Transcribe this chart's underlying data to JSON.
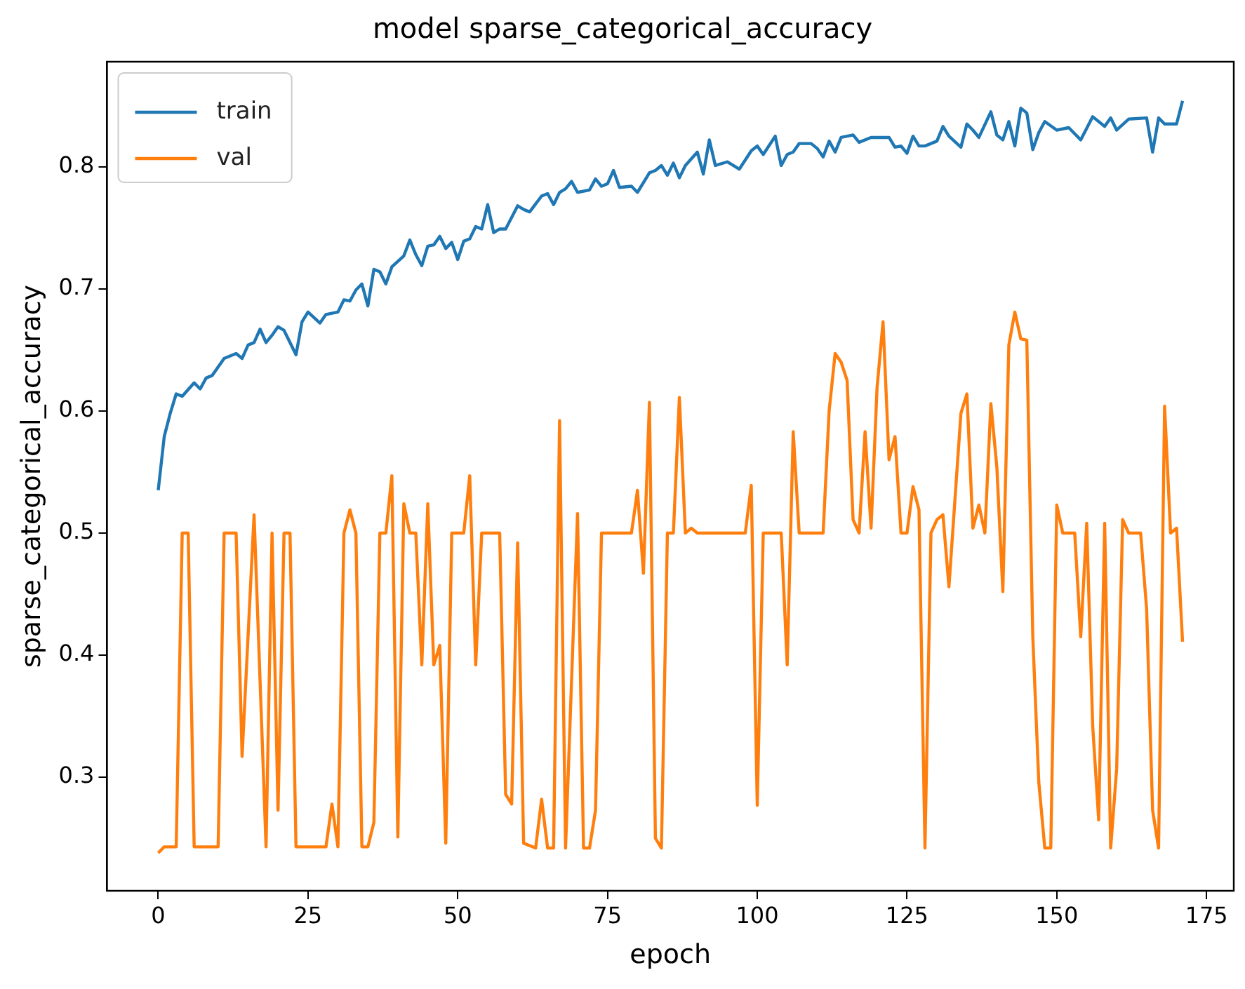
{
  "chart_data": {
    "type": "line",
    "title": "model sparse_categorical_accuracy",
    "xlabel": "epoch",
    "ylabel": "sparse_categorical_accuracy",
    "xlim": [
      -8.55,
      179.55
    ],
    "xticks": [
      0,
      25,
      50,
      75,
      100,
      125,
      150,
      175
    ],
    "ylim": [
      0.207,
      0.886
    ],
    "yticks": [
      0.3,
      0.4,
      0.5,
      0.6,
      0.7,
      0.8
    ],
    "grid": false,
    "legend": "top left",
    "marker": "none",
    "line_style": "solid",
    "series": [
      {
        "name": "train",
        "color": "#1f77b4",
        "x": [
          0,
          1,
          2,
          3,
          4,
          6,
          7,
          8,
          9,
          11,
          12,
          13,
          14,
          15,
          16,
          17,
          18,
          19,
          20,
          21,
          23,
          24,
          25,
          27,
          28,
          30,
          31,
          32,
          33,
          34,
          35,
          36,
          37,
          38,
          39,
          41,
          42,
          43,
          44,
          45,
          46,
          47,
          48,
          49,
          50,
          51,
          52,
          53,
          54,
          55,
          56,
          57,
          58,
          60,
          61,
          62,
          64,
          65,
          66,
          67,
          68,
          69,
          70,
          72,
          73,
          74,
          75,
          76,
          77,
          79,
          80,
          82,
          83,
          84,
          85,
          86,
          87,
          88,
          90,
          91,
          92,
          93,
          95,
          97,
          99,
          100,
          101,
          103,
          104,
          105,
          106,
          107,
          109,
          110,
          111,
          112,
          113,
          114,
          116,
          117,
          119,
          122,
          123,
          124,
          125,
          126,
          127,
          128,
          130,
          131,
          132,
          134,
          135,
          136,
          137,
          139,
          140,
          141,
          142,
          143,
          144,
          145,
          146,
          147,
          148,
          150,
          152,
          154,
          156,
          158,
          159,
          160,
          162,
          165,
          166,
          167,
          168,
          170,
          171
        ],
        "values": [
          0.535,
          0.579,
          0.598,
          0.614,
          0.612,
          0.623,
          0.618,
          0.627,
          0.629,
          0.643,
          0.645,
          0.647,
          0.643,
          0.654,
          0.656,
          0.667,
          0.656,
          0.662,
          0.669,
          0.666,
          0.646,
          0.673,
          0.681,
          0.672,
          0.679,
          0.681,
          0.691,
          0.69,
          0.699,
          0.704,
          0.686,
          0.716,
          0.714,
          0.704,
          0.718,
          0.727,
          0.74,
          0.728,
          0.719,
          0.735,
          0.736,
          0.743,
          0.733,
          0.738,
          0.724,
          0.739,
          0.741,
          0.751,
          0.749,
          0.769,
          0.746,
          0.749,
          0.749,
          0.768,
          0.765,
          0.763,
          0.776,
          0.778,
          0.769,
          0.779,
          0.782,
          0.788,
          0.779,
          0.781,
          0.79,
          0.784,
          0.786,
          0.797,
          0.783,
          0.784,
          0.779,
          0.795,
          0.797,
          0.801,
          0.793,
          0.803,
          0.791,
          0.801,
          0.812,
          0.794,
          0.822,
          0.801,
          0.804,
          0.798,
          0.813,
          0.817,
          0.81,
          0.825,
          0.801,
          0.81,
          0.812,
          0.819,
          0.819,
          0.815,
          0.808,
          0.821,
          0.812,
          0.824,
          0.826,
          0.82,
          0.824,
          0.824,
          0.816,
          0.817,
          0.811,
          0.825,
          0.817,
          0.817,
          0.821,
          0.833,
          0.825,
          0.816,
          0.835,
          0.83,
          0.824,
          0.845,
          0.826,
          0.822,
          0.837,
          0.817,
          0.848,
          0.844,
          0.814,
          0.828,
          0.837,
          0.83,
          0.832,
          0.822,
          0.841,
          0.833,
          0.84,
          0.83,
          0.839,
          0.84,
          0.812,
          0.84,
          0.835,
          0.835,
          0.854
        ]
      },
      {
        "name": "val",
        "color": "#ff7f0e",
        "x": [
          0,
          1,
          3,
          4,
          5,
          6,
          10,
          11,
          13,
          14,
          16,
          18,
          19,
          20,
          21,
          22,
          23,
          28,
          29,
          30,
          31,
          32,
          33,
          34,
          35,
          36,
          37,
          38,
          39,
          40,
          41,
          42,
          43,
          44,
          45,
          46,
          47,
          48,
          49,
          51,
          52,
          53,
          54,
          57,
          58,
          59,
          60,
          61,
          63,
          64,
          65,
          66,
          67,
          68,
          70,
          71,
          72,
          73,
          74,
          79,
          80,
          81,
          82,
          83,
          84,
          85,
          86,
          87,
          88,
          89,
          90,
          98,
          99,
          100,
          101,
          104,
          105,
          106,
          107,
          111,
          112,
          113,
          114,
          115,
          116,
          117,
          118,
          119,
          120,
          121,
          122,
          123,
          124,
          125,
          126,
          127,
          128,
          129,
          130,
          131,
          132,
          133,
          134,
          135,
          136,
          137,
          138,
          139,
          140,
          141,
          142,
          143,
          144,
          145,
          146,
          147,
          148,
          149,
          150,
          151,
          153,
          154,
          155,
          156,
          157,
          158,
          159,
          160,
          161,
          162,
          164,
          165,
          166,
          167,
          168,
          169,
          170,
          171
        ],
        "values": [
          0.238,
          0.243,
          0.243,
          0.5,
          0.5,
          0.243,
          0.243,
          0.5,
          0.5,
          0.317,
          0.515,
          0.243,
          0.5,
          0.273,
          0.5,
          0.5,
          0.243,
          0.243,
          0.278,
          0.243,
          0.5,
          0.519,
          0.5,
          0.243,
          0.243,
          0.263,
          0.5,
          0.5,
          0.547,
          0.251,
          0.524,
          0.5,
          0.5,
          0.392,
          0.524,
          0.392,
          0.408,
          0.246,
          0.5,
          0.5,
          0.547,
          0.392,
          0.5,
          0.5,
          0.286,
          0.278,
          0.492,
          0.246,
          0.242,
          0.282,
          0.242,
          0.242,
          0.592,
          0.242,
          0.516,
          0.242,
          0.242,
          0.273,
          0.5,
          0.5,
          0.535,
          0.467,
          0.607,
          0.25,
          0.242,
          0.5,
          0.5,
          0.611,
          0.5,
          0.504,
          0.5,
          0.5,
          0.539,
          0.277,
          0.5,
          0.5,
          0.392,
          0.583,
          0.5,
          0.5,
          0.6,
          0.647,
          0.64,
          0.625,
          0.511,
          0.5,
          0.583,
          0.504,
          0.619,
          0.673,
          0.56,
          0.579,
          0.5,
          0.5,
          0.538,
          0.519,
          0.242,
          0.5,
          0.511,
          0.515,
          0.456,
          0.527,
          0.598,
          0.614,
          0.504,
          0.523,
          0.5,
          0.606,
          0.554,
          0.452,
          0.654,
          0.681,
          0.659,
          0.658,
          0.415,
          0.296,
          0.242,
          0.242,
          0.523,
          0.5,
          0.5,
          0.415,
          0.508,
          0.342,
          0.265,
          0.508,
          0.242,
          0.307,
          0.511,
          0.5,
          0.5,
          0.438,
          0.273,
          0.242,
          0.604,
          0.5,
          0.504,
          0.411
        ]
      }
    ]
  }
}
